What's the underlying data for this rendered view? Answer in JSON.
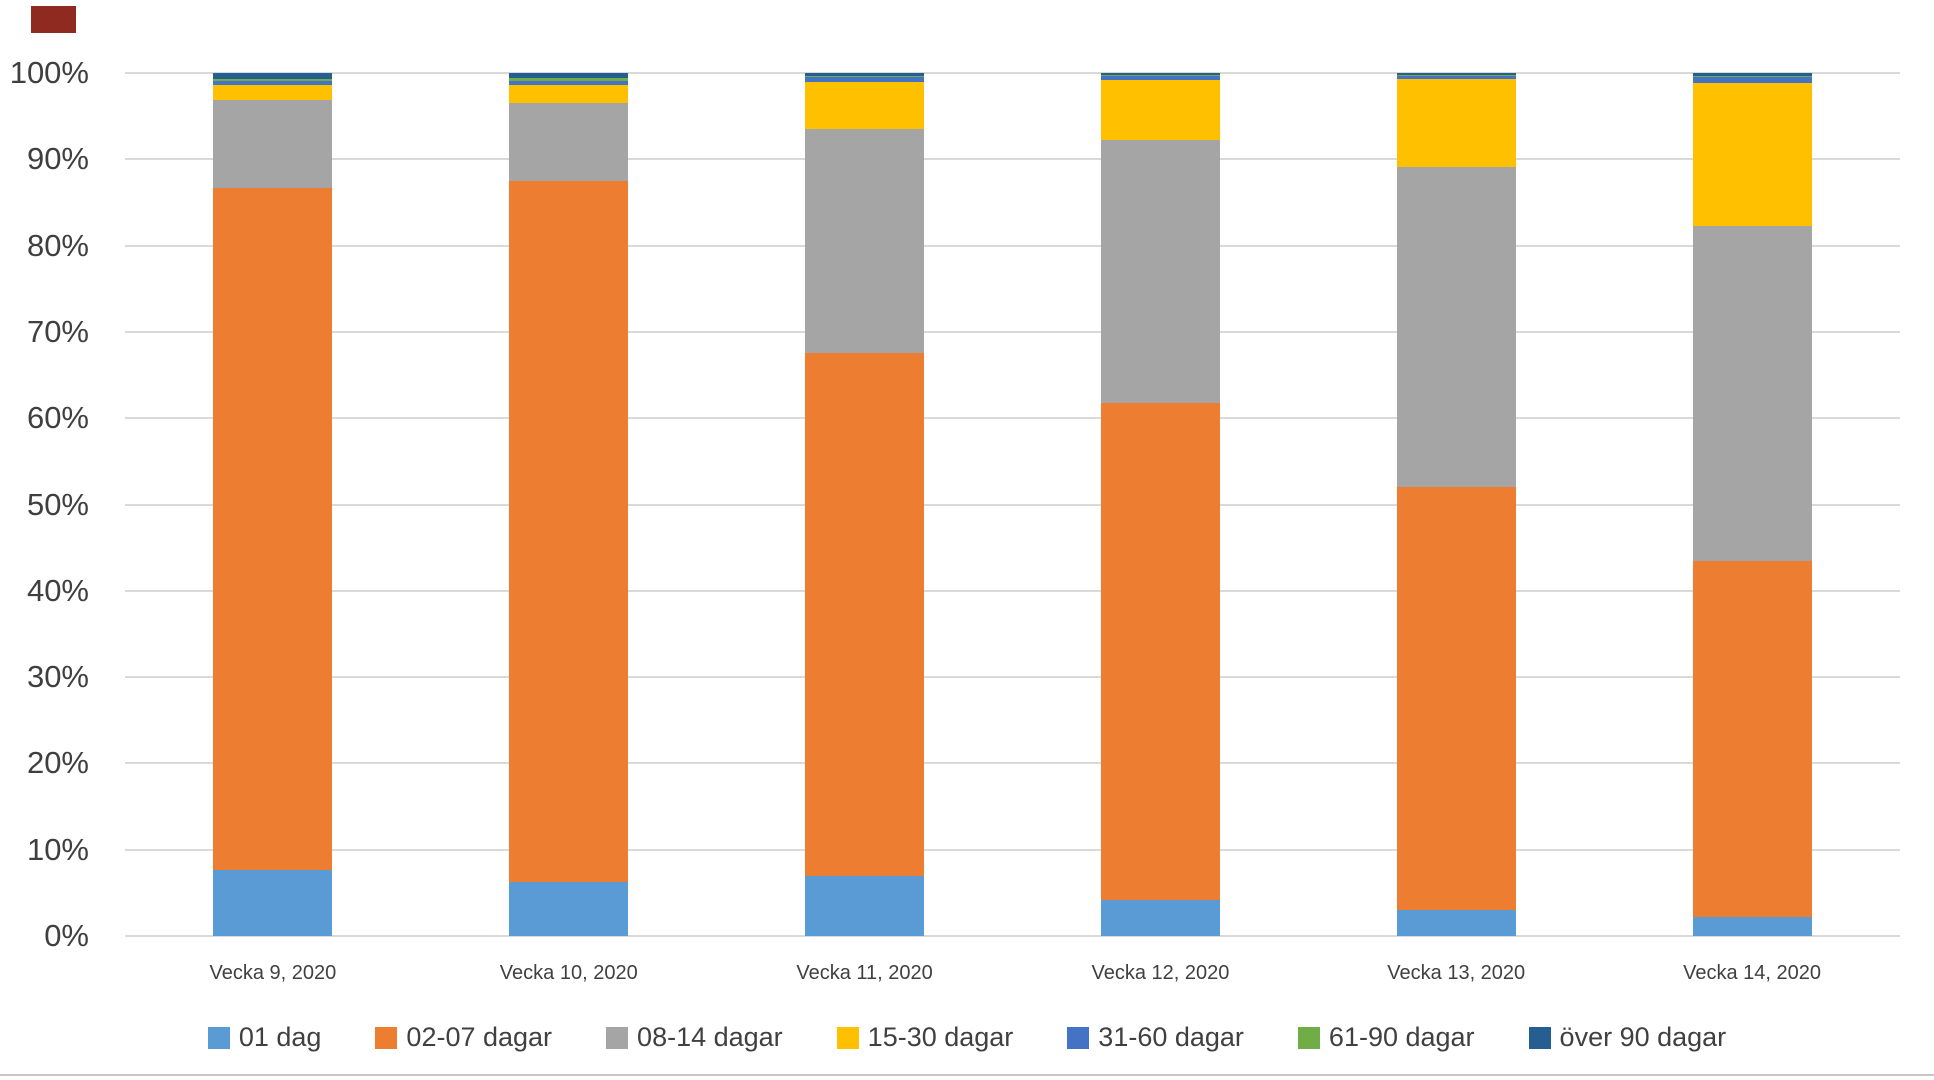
{
  "page": {
    "background": "#FFFFFF",
    "corner_marker_color": "#8E2A1F",
    "bottom_rule_color": "#CBC5C5"
  },
  "chart_data": {
    "type": "bar",
    "stacked": true,
    "percent_stacked": true,
    "title": "",
    "xlabel": "",
    "ylabel": "",
    "categories": [
      "Vecka 9, 2020",
      "Vecka 10, 2020",
      "Vecka 11, 2020",
      "Vecka 12, 2020",
      "Vecka 13, 2020",
      "Vecka 14, 2020"
    ],
    "series": [
      {
        "name": "01 dag",
        "color": "#5B9BD5",
        "values": [
          7.7,
          6.3,
          7.0,
          4.2,
          3.0,
          2.2
        ]
      },
      {
        "name": "02-07 dagar",
        "color": "#ED7D31",
        "values": [
          79.0,
          81.2,
          60.6,
          57.6,
          49.0,
          41.2
        ]
      },
      {
        "name": "08-14 dagar",
        "color": "#A5A5A5",
        "values": [
          10.2,
          9.0,
          25.9,
          30.4,
          37.1,
          38.9
        ]
      },
      {
        "name": "15-30 dagar",
        "color": "#FFC000",
        "values": [
          1.7,
          2.1,
          5.5,
          7.0,
          10.2,
          16.6
        ]
      },
      {
        "name": "31-60 dagar",
        "color": "#4472C4",
        "values": [
          0.5,
          0.5,
          0.5,
          0.5,
          0.4,
          0.6
        ]
      },
      {
        "name": "61-90 dagar",
        "color": "#70AD47",
        "values": [
          0.2,
          0.3,
          0.1,
          0.1,
          0.1,
          0.2
        ]
      },
      {
        "name": "över 90 dagar",
        "color": "#255E91",
        "values": [
          0.7,
          0.6,
          0.4,
          0.2,
          0.2,
          0.3
        ]
      }
    ],
    "y_axis": {
      "min": 0,
      "max": 100,
      "tick_step": 10,
      "ticks": [
        "0%",
        "10%",
        "20%",
        "30%",
        "40%",
        "50%",
        "60%",
        "70%",
        "80%",
        "90%",
        "100%"
      ],
      "grid": true,
      "gridline_color": "#D9D9D9",
      "label_color": "#3F3F3F"
    },
    "legend": {
      "position": "bottom",
      "labels": [
        "01 dag",
        "02-07 dagar",
        "08-14 dagar",
        "15-30 dagar",
        "31-60 dagar",
        "61-90 dagar",
        "över 90 dagar"
      ]
    }
  }
}
